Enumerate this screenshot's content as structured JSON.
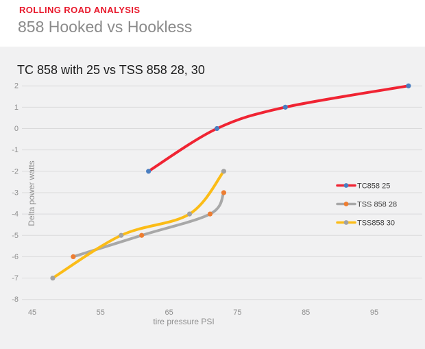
{
  "page": {
    "kicker": "ROLLING ROAD ANALYSIS",
    "title": "858 Hooked vs Hookless"
  },
  "colors": {
    "kicker_red": "#e8192c",
    "page_title_gray": "#8a8a8a",
    "panel_bg": "#f1f1f2",
    "gridline": "#dadadb",
    "axis_text": "#8e8e8e",
    "chart_title_text": "#1c1c1c",
    "legend_text": "#3d3d3d"
  },
  "chart_data": {
    "type": "line",
    "title": "TC 858 with 25 vs TSS 858 28, 30",
    "xlabel": "tire pressure PSI",
    "ylabel": "Delta power watts",
    "x_ticks": [
      45,
      55,
      65,
      75,
      85,
      95
    ],
    "y_ticks": [
      2,
      1,
      0,
      -1,
      -2,
      -3,
      -4,
      -5,
      -6,
      -7,
      -8
    ],
    "xlim": [
      45,
      102
    ],
    "ylim": [
      -8,
      2
    ],
    "grid": "horizontal-only",
    "line_style": "smooth",
    "legend_position": "inside-right",
    "series": [
      {
        "name": "TC858 25",
        "line_color": "#f02433",
        "marker_color": "#4a7ec0",
        "points": [
          [
            62,
            -2
          ],
          [
            72,
            0
          ],
          [
            82,
            1
          ],
          [
            100,
            2
          ]
        ]
      },
      {
        "name": "TSS 858 28",
        "line_color": "#a8a8a8",
        "marker_color": "#ed7d31",
        "points": [
          [
            51,
            -6
          ],
          [
            61,
            -5
          ],
          [
            71,
            -4
          ],
          [
            73,
            -3
          ]
        ]
      },
      {
        "name": "TSS858 30",
        "line_color": "#fbbc17",
        "marker_color": "#a2a2a2",
        "points": [
          [
            48,
            -7
          ],
          [
            58,
            -5
          ],
          [
            68,
            -4
          ],
          [
            73,
            -2
          ]
        ]
      }
    ]
  }
}
